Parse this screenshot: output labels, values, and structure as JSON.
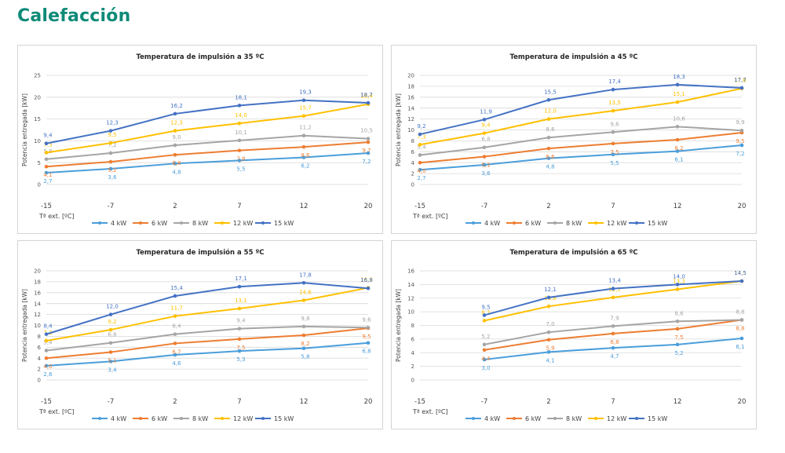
{
  "page": {
    "title": "Calefacción"
  },
  "colors": {
    "title": "#0e8a78",
    "grid": "#d9d9d9",
    "axis_text": "#595959"
  },
  "chart_data": [
    {
      "type": "line",
      "title": "Temperatura de impulsión a 35 ºC",
      "xlabel": "Tª ext. [ºC]",
      "ylabel": "Potencia entregada [kW]",
      "x": [
        -15,
        -7,
        2,
        7,
        12,
        20
      ],
      "ylim": [
        0,
        25
      ],
      "ystep": 5,
      "grid": true,
      "legend": "bottom",
      "series": [
        {
          "name": "4 kW",
          "color": "#4a9edb",
          "values": [
            2.7,
            3.6,
            4.8,
            5.5,
            6.2,
            7.2
          ]
        },
        {
          "name": "6 kW",
          "color": "#ed7d31",
          "values": [
            4.1,
            5.2,
            6.8,
            7.8,
            8.6,
            9.7
          ]
        },
        {
          "name": "8 kW",
          "color": "#a5a5a5",
          "values": [
            5.8,
            7.2,
            9.0,
            10.1,
            11.2,
            10.5
          ]
        },
        {
          "name": "12 kW",
          "color": "#ffc000",
          "values": [
            7.3,
            9.5,
            12.3,
            14.0,
            15.7,
            18.4
          ]
        },
        {
          "name": "15 kW",
          "color": "#4472c4",
          "values": [
            9.4,
            12.3,
            16.2,
            18.1,
            19.3,
            18.7
          ]
        }
      ],
      "labels": [
        [
          "2,7",
          "3,6",
          "4,8",
          "5,5",
          "6,2",
          "7,2"
        ],
        [
          "4,1",
          "5,2",
          "6,8",
          "7,8",
          "8,6",
          "9,7"
        ],
        [
          "5,8",
          "7,2",
          "9,0",
          "10,1",
          "11,2",
          "10,5"
        ],
        [
          "7,3",
          "9,5",
          "12,3",
          "14,0",
          "15,7",
          "18,4"
        ],
        [
          "9,4",
          "12,3",
          "16,2",
          "18,1",
          "19,3",
          "18,7"
        ]
      ]
    },
    {
      "type": "line",
      "title": "Temperatura de impulsión a 45 ºC",
      "xlabel": "Tª ext. [ºC]",
      "ylabel": "Potencia entregada [kW]",
      "x": [
        -15,
        -7,
        2,
        7,
        12,
        20
      ],
      "ylim": [
        0,
        20
      ],
      "ystep": 2,
      "grid": true,
      "legend": "bottom",
      "series": [
        {
          "name": "4 kW",
          "color": "#4a9edb",
          "values": [
            2.7,
            3.6,
            4.8,
            5.5,
            6.1,
            7.2
          ]
        },
        {
          "name": "6 kW",
          "color": "#ed7d31",
          "values": [
            4.0,
            5.1,
            6.6,
            7.5,
            8.2,
            9.5
          ]
        },
        {
          "name": "8 kW",
          "color": "#a5a5a5",
          "values": [
            5.4,
            6.8,
            8.6,
            9.6,
            10.6,
            9.9
          ]
        },
        {
          "name": "12 kW",
          "color": "#ffc000",
          "values": [
            7.3,
            9.4,
            12.0,
            13.5,
            15.1,
            17.6
          ]
        },
        {
          "name": "15 kW",
          "color": "#4472c4",
          "values": [
            9.2,
            11.9,
            15.5,
            17.4,
            18.3,
            17.7
          ]
        }
      ],
      "labels": [
        [
          "2,7",
          "3,6",
          "4,8",
          "5,5",
          "6,1",
          "7,2"
        ],
        [
          "4,0",
          "5,1",
          "6,6",
          "7,5",
          "8,2",
          "9,5"
        ],
        [
          "5,4",
          "6,8",
          "8,6",
          "9,6",
          "10,6",
          "9,9"
        ],
        [
          "7,3",
          "9,4",
          "12,0",
          "13,5",
          "15,1",
          "17,6"
        ],
        [
          "9,2",
          "11,9",
          "15,5",
          "17,4",
          "18,3",
          "17,7"
        ]
      ]
    },
    {
      "type": "line",
      "title": "Temperatura de impulsión a 55 ºC",
      "xlabel": "Tª ext. [ºC]",
      "ylabel": "Potencia entregada [kW]",
      "x": [
        -15,
        -7,
        2,
        7,
        12,
        20
      ],
      "ylim": [
        0,
        20
      ],
      "ystep": 2,
      "grid": true,
      "legend": "bottom",
      "series": [
        {
          "name": "4 kW",
          "color": "#4a9edb",
          "values": [
            2.6,
            3.4,
            4.6,
            5.3,
            5.8,
            6.8
          ]
        },
        {
          "name": "6 kW",
          "color": "#ed7d31",
          "values": [
            4.0,
            5.1,
            6.7,
            7.5,
            8.2,
            9.5
          ]
        },
        {
          "name": "8 kW",
          "color": "#a5a5a5",
          "values": [
            5.4,
            6.8,
            8.4,
            9.4,
            9.8,
            9.6
          ]
        },
        {
          "name": "12 kW",
          "color": "#ffc000",
          "values": [
            7.2,
            9.2,
            11.7,
            13.1,
            14.6,
            16.9
          ]
        },
        {
          "name": "15 kW",
          "color": "#4472c4",
          "values": [
            8.4,
            12.0,
            15.4,
            17.1,
            17.8,
            16.8
          ]
        }
      ],
      "labels": [
        [
          "2,6",
          "3,4",
          "4,6",
          "5,3",
          "5,8",
          "6,8"
        ],
        [
          "4,0",
          "5,1",
          "6,7",
          "7,5",
          "8,2",
          "9,5"
        ],
        [
          "5,4",
          "6,8",
          "8,4",
          "9,4",
          "9,8",
          "9,6"
        ],
        [
          "7,2",
          "9,2",
          "11,7",
          "13,1",
          "14,6",
          "16,9"
        ],
        [
          "8,4",
          "12,0",
          "15,4",
          "17,1",
          "17,8",
          "16,8"
        ]
      ]
    },
    {
      "type": "line",
      "title": "Temperatura de impulsión a 65 ºC",
      "xlabel": "Tª ext. [ºC]",
      "ylabel": "Potencia entregada [kW]",
      "x": [
        -15,
        -7,
        2,
        7,
        12,
        20
      ],
      "ylim": [
        0,
        16
      ],
      "ystep": 2,
      "grid": true,
      "legend": "bottom",
      "series": [
        {
          "name": "4 kW",
          "color": "#4a9edb",
          "values": [
            null,
            3.0,
            4.1,
            4.7,
            5.2,
            6.1
          ]
        },
        {
          "name": "6 kW",
          "color": "#ed7d31",
          "values": [
            null,
            4.4,
            5.9,
            6.8,
            7.5,
            8.8
          ]
        },
        {
          "name": "8 kW",
          "color": "#a5a5a5",
          "values": [
            null,
            5.2,
            7.0,
            7.9,
            8.6,
            8.8
          ]
        },
        {
          "name": "12 kW",
          "color": "#ffc000",
          "values": [
            null,
            8.7,
            10.8,
            12.1,
            13.3,
            14.5
          ]
        },
        {
          "name": "15 kW",
          "color": "#4472c4",
          "values": [
            null,
            9.5,
            12.1,
            13.4,
            14.0,
            14.5
          ]
        }
      ],
      "labels": [
        [
          "",
          "3,0",
          "4,1",
          "4,7",
          "5,2",
          "6,1"
        ],
        [
          "",
          "4,4",
          "5,9",
          "6,8",
          "7,5",
          "8,8"
        ],
        [
          "",
          "5,2",
          "7,0",
          "7,9",
          "8,6",
          "8,8"
        ],
        [
          "",
          "8,7",
          "10,8",
          "12,1",
          "13,3",
          "14,5"
        ],
        [
          "",
          "9,5",
          "12,1",
          "13,4",
          "14,0",
          "14,5"
        ]
      ]
    }
  ]
}
